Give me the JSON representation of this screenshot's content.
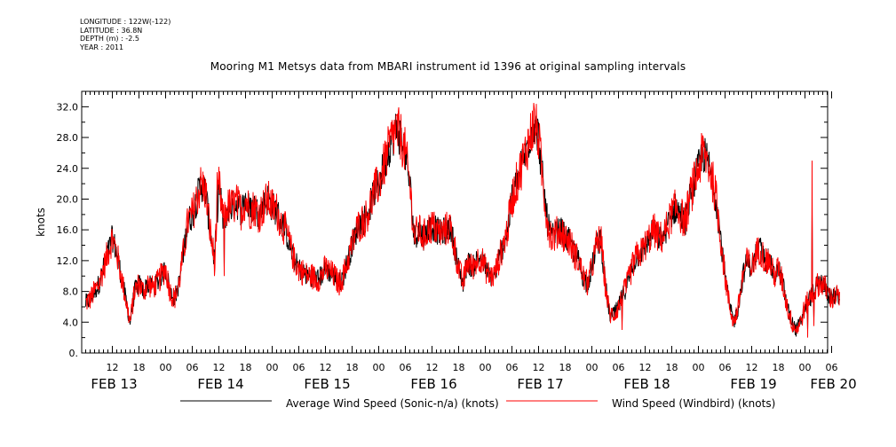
{
  "meta": {
    "longitude": "LONGITUDE : 122W(-122)",
    "latitude": "LATITUDE : 36.8N",
    "depth": "DEPTH (m) : -2.5",
    "year": "YEAR : 2011"
  },
  "colors": {
    "black_series": "#000000",
    "red_series": "#ff0000",
    "axis": "#000000"
  },
  "chart_data": {
    "type": "line",
    "title": "Mooring M1 Metsys data from MBARI instrument id 1396 at original sampling intervals",
    "ylabel": "knots",
    "xlabel": "",
    "ylim": [
      0,
      34
    ],
    "xlim_hours": [
      0,
      170
    ],
    "x_unit": "hours since FEB 12 06:00",
    "yticks": [
      "0.",
      "4.0",
      "8.0",
      "12.0",
      "16.0",
      "20.0",
      "24.0",
      "28.0",
      "32.0"
    ],
    "hour_ticks": [
      {
        "h": 6,
        "label": "12"
      },
      {
        "h": 12,
        "label": "18"
      },
      {
        "h": 18,
        "label": "00"
      },
      {
        "h": 24,
        "label": "06"
      },
      {
        "h": 30,
        "label": "12"
      },
      {
        "h": 36,
        "label": "18"
      },
      {
        "h": 42,
        "label": "00"
      },
      {
        "h": 48,
        "label": "06"
      },
      {
        "h": 54,
        "label": "12"
      },
      {
        "h": 60,
        "label": "18"
      },
      {
        "h": 66,
        "label": "00"
      },
      {
        "h": 72,
        "label": "06"
      },
      {
        "h": 78,
        "label": "12"
      },
      {
        "h": 84,
        "label": "18"
      },
      {
        "h": 90,
        "label": "00"
      },
      {
        "h": 96,
        "label": "06"
      },
      {
        "h": 102,
        "label": "12"
      },
      {
        "h": 108,
        "label": "18"
      },
      {
        "h": 114,
        "label": "00"
      },
      {
        "h": 120,
        "label": "06"
      },
      {
        "h": 126,
        "label": "12"
      },
      {
        "h": 132,
        "label": "18"
      },
      {
        "h": 138,
        "label": "00"
      },
      {
        "h": 144,
        "label": "06"
      },
      {
        "h": 150,
        "label": "12"
      },
      {
        "h": 156,
        "label": "18"
      },
      {
        "h": 162,
        "label": "00"
      },
      {
        "h": 168,
        "label": "06"
      }
    ],
    "date_labels": [
      {
        "h": 6,
        "label": "FEB 13"
      },
      {
        "h": 30,
        "label": "FEB 14"
      },
      {
        "h": 54,
        "label": "FEB 15"
      },
      {
        "h": 78,
        "label": "FEB 16"
      },
      {
        "h": 102,
        "label": "FEB 17"
      },
      {
        "h": 126,
        "label": "FEB 18"
      },
      {
        "h": 150,
        "label": "FEB 19"
      },
      {
        "h": 168,
        "label": "FEB 20"
      }
    ],
    "keypoints": [
      [
        0,
        6.5
      ],
      [
        1,
        7
      ],
      [
        2,
        8
      ],
      [
        3,
        9
      ],
      [
        4,
        11
      ],
      [
        5,
        13
      ],
      [
        6,
        15
      ],
      [
        7,
        13
      ],
      [
        8,
        10
      ],
      [
        9,
        7
      ],
      [
        10,
        4
      ],
      [
        11,
        8
      ],
      [
        12,
        9
      ],
      [
        13,
        8
      ],
      [
        14,
        9
      ],
      [
        15,
        8.5
      ],
      [
        16,
        9
      ],
      [
        17,
        10
      ],
      [
        18,
        11
      ],
      [
        19,
        8
      ],
      [
        20,
        7
      ],
      [
        21,
        9
      ],
      [
        22,
        13
      ],
      [
        23,
        17
      ],
      [
        24,
        18
      ],
      [
        25,
        20
      ],
      [
        26,
        22
      ],
      [
        27,
        21
      ],
      [
        28,
        16
      ],
      [
        29,
        12
      ],
      [
        30,
        22
      ],
      [
        31,
        17
      ],
      [
        32,
        19
      ],
      [
        33,
        19
      ],
      [
        34,
        19.5
      ],
      [
        35,
        18.5
      ],
      [
        36,
        20
      ],
      [
        37,
        18.5
      ],
      [
        38,
        19
      ],
      [
        39,
        18
      ],
      [
        40,
        19
      ],
      [
        41,
        20
      ],
      [
        42,
        19
      ],
      [
        43,
        18.5
      ],
      [
        44,
        17
      ],
      [
        45,
        16
      ],
      [
        46,
        14
      ],
      [
        47,
        12
      ],
      [
        48,
        11
      ],
      [
        49,
        10.5
      ],
      [
        50,
        10
      ],
      [
        51,
        10
      ],
      [
        52,
        9.5
      ],
      [
        53,
        10
      ],
      [
        54,
        11
      ],
      [
        55,
        10.5
      ],
      [
        56,
        10
      ],
      [
        57,
        9
      ],
      [
        58,
        10
      ],
      [
        59,
        12
      ],
      [
        60,
        14
      ],
      [
        61,
        16
      ],
      [
        62,
        17
      ],
      [
        63,
        17.5
      ],
      [
        64,
        19
      ],
      [
        65,
        21
      ],
      [
        66,
        22
      ],
      [
        67,
        24
      ],
      [
        68,
        26
      ],
      [
        69,
        28
      ],
      [
        70,
        29
      ],
      [
        71,
        28
      ],
      [
        72,
        26
      ],
      [
        73,
        22
      ],
      [
        74,
        15
      ],
      [
        75,
        16
      ],
      [
        76,
        15
      ],
      [
        77,
        16
      ],
      [
        78,
        16.5
      ],
      [
        79,
        16
      ],
      [
        80,
        15.5
      ],
      [
        81,
        16
      ],
      [
        82,
        16.5
      ],
      [
        83,
        14
      ],
      [
        84,
        11
      ],
      [
        85,
        9
      ],
      [
        86,
        12
      ],
      [
        87,
        11
      ],
      [
        88,
        12
      ],
      [
        89,
        12.5
      ],
      [
        90,
        11
      ],
      [
        91,
        10
      ],
      [
        92,
        10
      ],
      [
        93,
        12
      ],
      [
        94,
        14
      ],
      [
        95,
        16
      ],
      [
        96,
        20
      ],
      [
        97,
        22
      ],
      [
        98,
        24
      ],
      [
        99,
        26
      ],
      [
        100,
        28
      ],
      [
        101,
        30
      ],
      [
        102,
        28
      ],
      [
        103,
        22
      ],
      [
        104,
        17
      ],
      [
        105,
        15
      ],
      [
        106,
        15.5
      ],
      [
        107,
        16
      ],
      [
        108,
        15
      ],
      [
        109,
        14.5
      ],
      [
        110,
        13
      ],
      [
        111,
        12
      ],
      [
        112,
        10
      ],
      [
        113,
        9
      ],
      [
        114,
        11
      ],
      [
        115,
        14
      ],
      [
        116,
        15
      ],
      [
        117,
        9
      ],
      [
        118,
        5
      ],
      [
        119,
        5
      ],
      [
        120,
        6
      ],
      [
        121,
        7.5
      ],
      [
        122,
        9
      ],
      [
        123,
        11
      ],
      [
        124,
        12.5
      ],
      [
        125,
        13
      ],
      [
        126,
        14
      ],
      [
        127,
        15
      ],
      [
        128,
        16
      ],
      [
        129,
        15
      ],
      [
        130,
        15
      ],
      [
        131,
        16.5
      ],
      [
        132,
        18
      ],
      [
        133,
        19
      ],
      [
        134,
        18
      ],
      [
        135,
        17
      ],
      [
        136,
        20
      ],
      [
        137,
        22
      ],
      [
        138,
        24
      ],
      [
        139,
        26
      ],
      [
        140,
        25
      ],
      [
        141,
        23
      ],
      [
        142,
        20
      ],
      [
        143,
        15
      ],
      [
        144,
        10
      ],
      [
        145,
        6
      ],
      [
        146,
        4
      ],
      [
        147,
        6
      ],
      [
        148,
        10
      ],
      [
        149,
        12
      ],
      [
        150,
        11
      ],
      [
        151,
        13
      ],
      [
        152,
        13.5
      ],
      [
        153,
        12
      ],
      [
        154,
        12
      ],
      [
        155,
        10
      ],
      [
        156,
        11
      ],
      [
        157,
        9
      ],
      [
        158,
        6
      ],
      [
        159,
        4
      ],
      [
        160,
        3
      ],
      [
        161,
        4
      ],
      [
        162,
        6
      ],
      [
        163,
        7
      ],
      [
        164,
        8
      ],
      [
        165,
        9
      ],
      [
        166,
        9
      ],
      [
        167,
        8
      ],
      [
        168,
        7
      ],
      [
        169,
        7.5
      ],
      [
        170,
        7
      ]
    ],
    "spikes": [
      {
        "h": 29.0,
        "y": 10
      },
      {
        "h": 29.6,
        "y": 23.5
      },
      {
        "h": 31.2,
        "y": 10
      },
      {
        "h": 120.8,
        "y": 3
      },
      {
        "h": 162.6,
        "y": 2
      },
      {
        "h": 163.6,
        "y": 25
      },
      {
        "h": 164.0,
        "y": 3.5
      }
    ],
    "series": [
      {
        "name": "Average Wind Speed (Sonic-n/a) (knots)",
        "color": "#000000"
      },
      {
        "name": "Wind Speed (Windbird) (knots)",
        "color": "#ff0000"
      }
    ]
  }
}
